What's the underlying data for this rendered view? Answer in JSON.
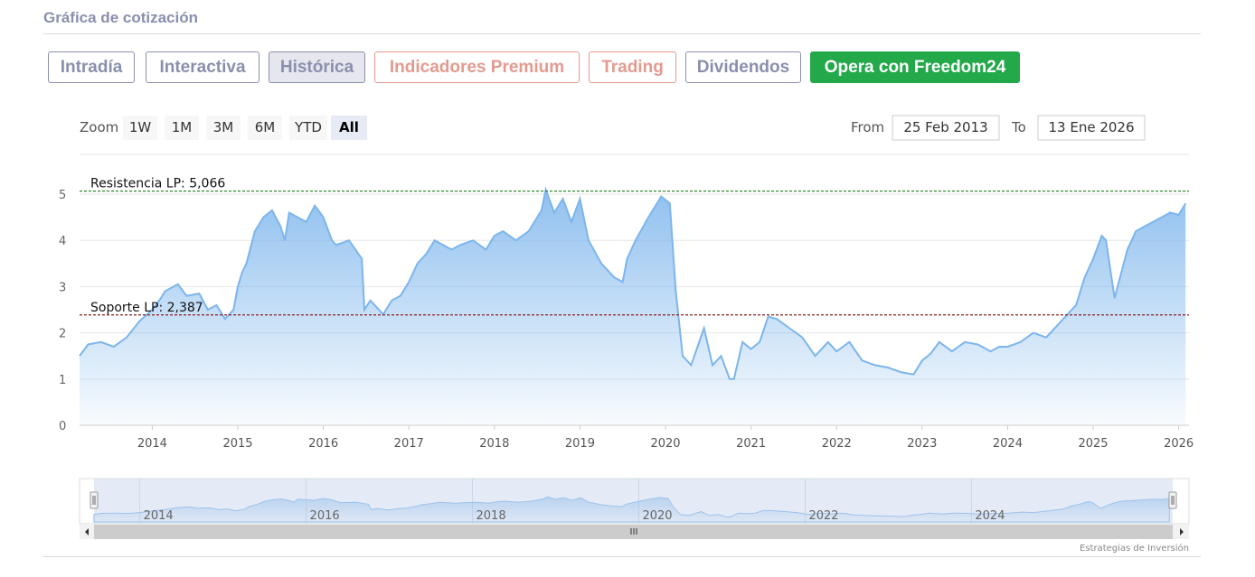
{
  "section": {
    "title": "Gráfica de cotización"
  },
  "tabs": [
    {
      "label": "Intradía",
      "style": "purple"
    },
    {
      "label": "Interactiva",
      "style": "purple"
    },
    {
      "label": "Histórica",
      "style": "active"
    },
    {
      "label": "Indicadores Premium",
      "style": "red"
    },
    {
      "label": "Trading",
      "style": "red"
    },
    {
      "label": "Dividendos",
      "style": "purple"
    },
    {
      "label": "Opera con Freedom24",
      "style": "cta"
    }
  ],
  "zoom": {
    "label": "Zoom",
    "buttons": [
      "1W",
      "1M",
      "3M",
      "6M",
      "YTD",
      "All"
    ],
    "selected": "All"
  },
  "range": {
    "from_label": "From",
    "from_value": "25 Feb 2013",
    "to_label": "To",
    "to_value": "13 Ene 2026"
  },
  "credit": "Estrategias de Inversión",
  "colors": {
    "line": "#7cb5ec",
    "resistance": "#2e8b2e",
    "support": "#8b2020",
    "navigator_mask": "#c5d2ec"
  },
  "chart_data": {
    "type": "area",
    "x_unit": "year",
    "ylim": [
      0,
      5
    ],
    "yticks": [
      0,
      1,
      2,
      3,
      4,
      5
    ],
    "xticks": [
      "2014",
      "2015",
      "2016",
      "2017",
      "2018",
      "2019",
      "2020",
      "2021",
      "2022",
      "2023",
      "2024",
      "2025",
      "2026"
    ],
    "navigator_xticks": [
      "2014",
      "2016",
      "2018",
      "2020",
      "2022",
      "2024"
    ],
    "grid": true,
    "reference_lines": [
      {
        "label": "Resistencia LP: 5,066",
        "value": 5.066
      },
      {
        "label": "Soporte LP: 2,387",
        "value": 2.387
      }
    ],
    "series": [
      {
        "x": [
          2013.15,
          2013.25,
          2013.4,
          2013.55,
          2013.7,
          2013.85,
          2014.0,
          2014.1,
          2014.15,
          2014.3,
          2014.4,
          2014.55,
          2014.65,
          2014.75,
          2014.85,
          2014.95,
          2015.0,
          2015.05,
          2015.1,
          2015.2,
          2015.3,
          2015.4,
          2015.5,
          2015.55,
          2015.6,
          2015.7,
          2015.8,
          2015.9,
          2016.0,
          2016.1,
          2016.15,
          2016.3,
          2016.45,
          2016.48,
          2016.55,
          2016.7,
          2016.8,
          2016.9,
          2017.0,
          2017.1,
          2017.2,
          2017.3,
          2017.5,
          2017.6,
          2017.75,
          2017.9,
          2018.0,
          2018.1,
          2018.25,
          2018.4,
          2018.55,
          2018.6,
          2018.7,
          2018.8,
          2018.9,
          2019.0,
          2019.1,
          2019.25,
          2019.4,
          2019.5,
          2019.55,
          2019.65,
          2019.8,
          2019.95,
          2020.05,
          2020.12,
          2020.2,
          2020.3,
          2020.45,
          2020.55,
          2020.65,
          2020.75,
          2020.8,
          2020.9,
          2021.0,
          2021.1,
          2021.2,
          2021.3,
          2021.45,
          2021.6,
          2021.75,
          2021.9,
          2022.0,
          2022.15,
          2022.3,
          2022.45,
          2022.6,
          2022.75,
          2022.9,
          2023.0,
          2023.1,
          2023.2,
          2023.35,
          2023.5,
          2023.65,
          2023.8,
          2023.9,
          2024.0,
          2024.15,
          2024.3,
          2024.45,
          2024.6,
          2024.7,
          2024.8,
          2024.9,
          2025.0,
          2025.1,
          2025.15,
          2025.25,
          2025.3,
          2025.4,
          2025.5,
          2025.6,
          2025.7,
          2025.8,
          2025.9,
          2026.0,
          2026.08
        ],
        "y": [
          1.5,
          1.75,
          1.8,
          1.7,
          1.9,
          2.25,
          2.5,
          2.75,
          2.9,
          3.05,
          2.8,
          2.85,
          2.5,
          2.6,
          2.3,
          2.5,
          3.0,
          3.3,
          3.5,
          4.2,
          4.5,
          4.65,
          4.3,
          4.0,
          4.6,
          4.5,
          4.4,
          4.75,
          4.5,
          4.0,
          3.9,
          4.0,
          3.6,
          2.5,
          2.7,
          2.4,
          2.7,
          2.8,
          3.1,
          3.5,
          3.7,
          4.0,
          3.8,
          3.9,
          4.0,
          3.8,
          4.1,
          4.2,
          4.0,
          4.2,
          4.65,
          5.1,
          4.6,
          4.9,
          4.4,
          4.9,
          4.0,
          3.5,
          3.2,
          3.1,
          3.6,
          4.0,
          4.5,
          4.95,
          4.8,
          2.9,
          1.5,
          1.3,
          2.1,
          1.3,
          1.5,
          1.0,
          1.0,
          1.8,
          1.65,
          1.8,
          2.35,
          2.3,
          2.1,
          1.9,
          1.5,
          1.8,
          1.6,
          1.8,
          1.4,
          1.3,
          1.25,
          1.15,
          1.1,
          1.4,
          1.55,
          1.8,
          1.6,
          1.8,
          1.75,
          1.6,
          1.7,
          1.7,
          1.8,
          2.0,
          1.9,
          2.2,
          2.4,
          2.6,
          3.2,
          3.6,
          4.1,
          4.0,
          2.75,
          3.1,
          3.8,
          4.2,
          4.3,
          4.4,
          4.5,
          4.6,
          4.55,
          4.8
        ]
      }
    ]
  }
}
